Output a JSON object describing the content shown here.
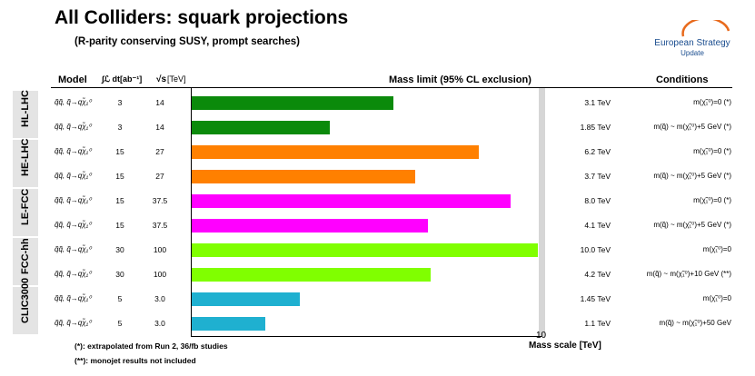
{
  "title": "All Colliders: squark projections",
  "subtitle": "(R-parity conserving SUSY, prompt searches)",
  "logo": {
    "line1": "European Strategy",
    "line2": "Update"
  },
  "headers": {
    "model": "Model",
    "lumi": "∫ℒ dt[ab⁻¹]",
    "sqrts": "√s",
    "sqrts_unit": "[TeV]",
    "mass": "Mass limit (95% CL exclusion)",
    "conditions": "Conditions"
  },
  "colliders": [
    {
      "name": "HL-LHC",
      "rows": [
        0,
        1
      ]
    },
    {
      "name": "HE-LHC",
      "rows": [
        2,
        3
      ]
    },
    {
      "name": "LE-FCC",
      "rows": [
        4,
        5
      ]
    },
    {
      "name": "FCC-hh",
      "rows": [
        6,
        7
      ]
    },
    {
      "name": "CLIC3000",
      "rows": [
        8,
        9
      ]
    }
  ],
  "rows": [
    {
      "model": "q̃q̃, q̃→qχ̃₁⁰",
      "lumi": "3",
      "sqrts": "14",
      "mass": 3.1,
      "mass_label": "3.1 TeV",
      "condition": "m(χ̃₁⁰)=0 (*)",
      "color": "#0b8a0b"
    },
    {
      "model": "q̃q̃, q̃→qχ̃₁⁰",
      "lumi": "3",
      "sqrts": "14",
      "mass": 1.85,
      "mass_label": "1.85 TeV",
      "condition": "m(q̃) ~ m(χ̃₁⁰)+5 GeV (*)",
      "color": "#0b8a0b"
    },
    {
      "model": "q̃q̃, q̃→qχ̃₁⁰",
      "lumi": "15",
      "sqrts": "27",
      "mass": 6.2,
      "mass_label": "6.2 TeV",
      "condition": "m(χ̃₁⁰)=0 (*)",
      "color": "#ff8000"
    },
    {
      "model": "q̃q̃, q̃→qχ̃₁⁰",
      "lumi": "15",
      "sqrts": "27",
      "mass": 3.7,
      "mass_label": "3.7 TeV",
      "condition": "m(q̃) ~ m(χ̃₁⁰)+5 GeV (*)",
      "color": "#ff8000"
    },
    {
      "model": "q̃q̃, q̃→qχ̃₁⁰",
      "lumi": "15",
      "sqrts": "37.5",
      "mass": 8.0,
      "mass_label": "8.0 TeV",
      "condition": "m(χ̃₁⁰)=0 (*)",
      "color": "#ff00ff"
    },
    {
      "model": "q̃q̃, q̃→qχ̃₁⁰",
      "lumi": "15",
      "sqrts": "37.5",
      "mass": 4.1,
      "mass_label": "4.1 TeV",
      "condition": "m(q̃) ~ m(χ̃₁⁰)+5 GeV (*)",
      "color": "#ff00ff"
    },
    {
      "model": "q̃q̃, q̃→qχ̃₁⁰",
      "lumi": "30",
      "sqrts": "100",
      "mass": 10.0,
      "mass_label": "10.0 TeV",
      "condition": "m(χ̃₁⁰)=0",
      "color": "#80ff00"
    },
    {
      "model": "q̃q̃, q̃→qχ̃₁⁰",
      "lumi": "30",
      "sqrts": "100",
      "mass": 4.2,
      "mass_label": "4.2 TeV",
      "condition": "m(q̃) ~ m(χ̃₁⁰)+10 GeV (**)",
      "color": "#80ff00"
    },
    {
      "model": "q̃q̃, q̃→qχ̃₁⁰",
      "lumi": "5",
      "sqrts": "3.0",
      "mass": 1.45,
      "mass_label": "1.45 TeV",
      "condition": "m(χ̃₁⁰)=0",
      "color": "#1fb0d0"
    },
    {
      "model": "q̃q̃, q̃→qχ̃₁⁰",
      "lumi": "5",
      "sqrts": "3.0",
      "mass": 1.1,
      "mass_label": "1.1 TeV",
      "condition": "m(q̃) ~ m(χ̃₁⁰)+50 GeV",
      "color": "#1fb0d0"
    }
  ],
  "chart_data": {
    "type": "bar",
    "orientation": "horizontal",
    "categories": [
      "HL-LHC",
      "HL-LHC",
      "HE-LHC",
      "HE-LHC",
      "LE-FCC",
      "LE-FCC",
      "FCC-hh",
      "FCC-hh",
      "CLIC3000",
      "CLIC3000"
    ],
    "values": [
      3.1,
      1.85,
      6.2,
      3.7,
      8.0,
      4.1,
      10.0,
      4.2,
      1.45,
      1.1
    ],
    "title": "Mass limit (95% CL exclusion)",
    "xlabel": "Mass scale [TeV]",
    "x_tick_labels": [
      "10"
    ],
    "xscale": "log",
    "xlim": [
      0.6,
      10.3
    ],
    "grid": false
  },
  "footnotes": [
    "(*): extrapolated from Run 2, 36/fb studies",
    "(**): monojet results not included"
  ]
}
